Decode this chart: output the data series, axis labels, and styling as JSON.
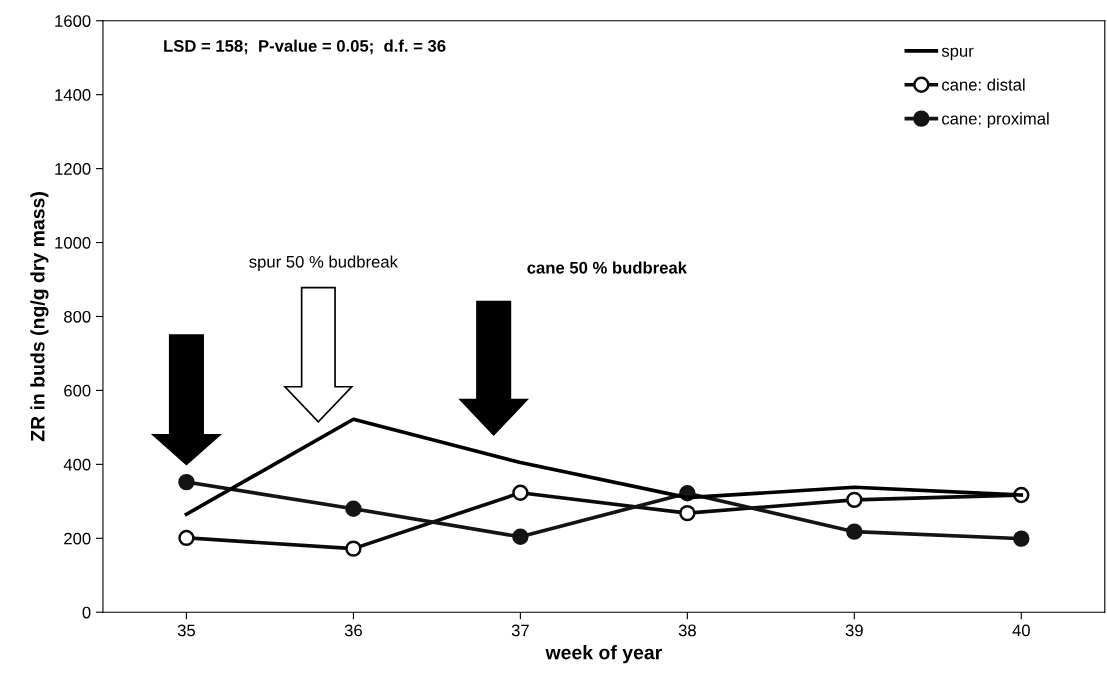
{
  "chart_data": {
    "type": "line",
    "xlabel": "week of year",
    "ylabel": "ZR in buds (ng/g dry mass)",
    "categories": [
      "35",
      "36",
      "37",
      "38",
      "39",
      "40"
    ],
    "series": [
      {
        "name": "spur",
        "color": "#000000",
        "marker": "none",
        "values": [
          265,
          522,
          405,
          310,
          338,
          317
        ]
      },
      {
        "name": "cane: distal",
        "color": "#0a0a0a",
        "marker": "circle",
        "values": [
          201,
          172,
          323,
          268,
          304,
          317
        ]
      },
      {
        "name": "cane: proximal",
        "color": "#141414",
        "marker": "circle",
        "values": [
          352,
          280,
          204,
          322,
          218,
          199
        ]
      }
    ],
    "ylim": [
      0,
      1600
    ],
    "yticks": [
      0,
      200,
      400,
      600,
      800,
      1000,
      1200,
      1400,
      1600
    ],
    "grid": false,
    "legend": "top right",
    "annotations": [
      "LSD = 158;  P-value = 0.05;  d.f. = 36",
      "spur 50 % budbreak",
      "cane 50 % budbreak"
    ]
  }
}
